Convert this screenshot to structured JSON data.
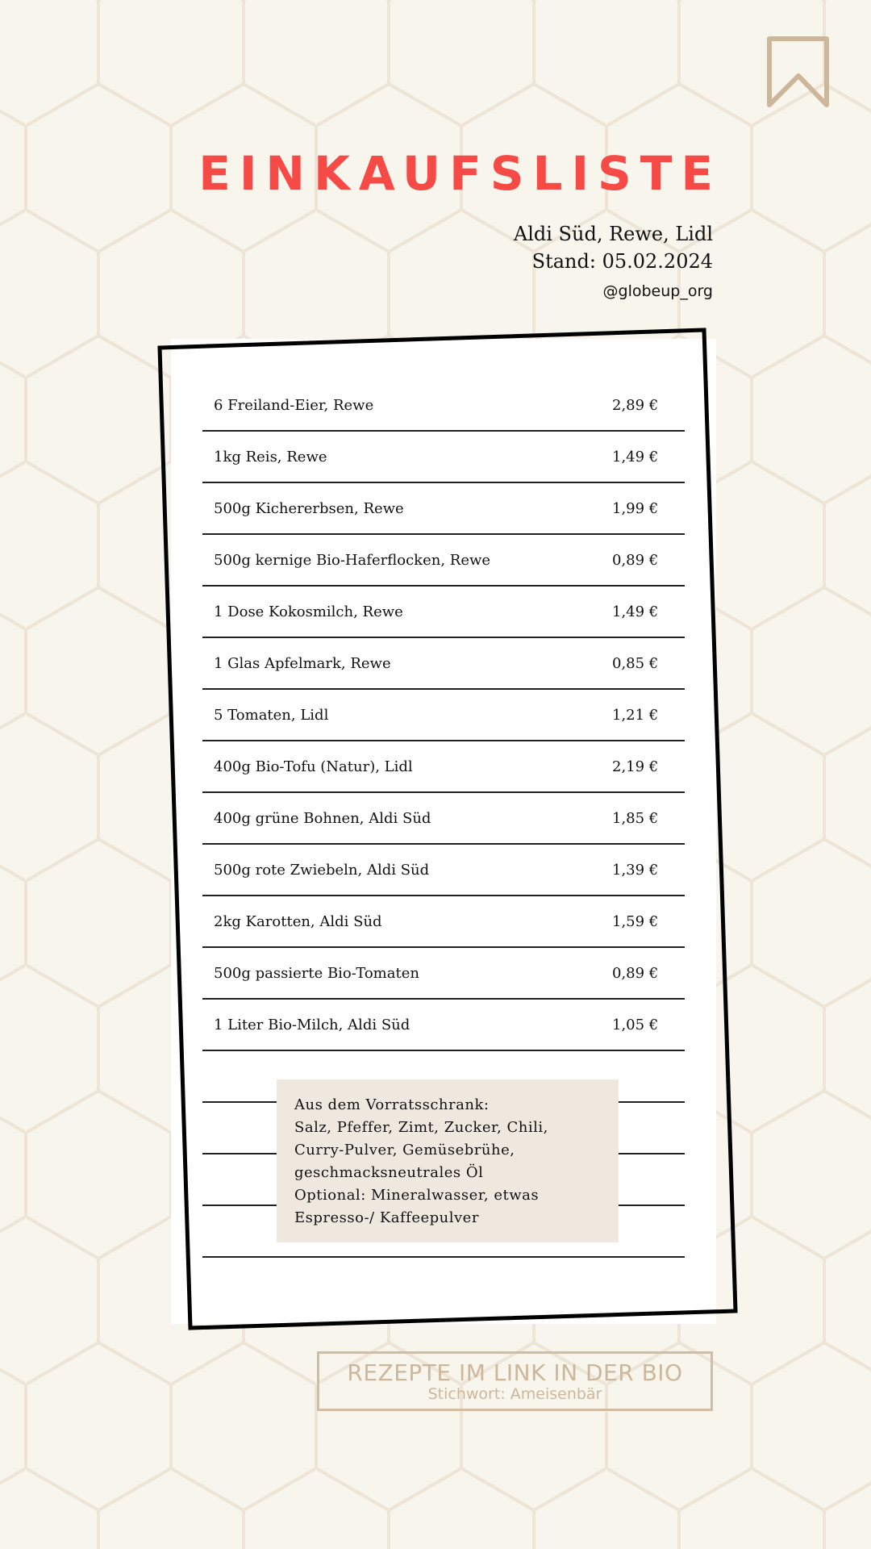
{
  "header": {
    "title": "EINKAUFSLISTE",
    "stores": "Aldi Süd, Rewe, Lidl",
    "date": "Stand: 05.02.2024",
    "handle": "@globeup_org",
    "bookmark_icon": "bookmark-icon"
  },
  "list": {
    "items": [
      {
        "name": "6 Freiland-Eier, Rewe",
        "price": "2,89 €"
      },
      {
        "name": "1kg Reis, Rewe",
        "price": "1,49 €"
      },
      {
        "name": "500g Kichererbsen, Rewe",
        "price": "1,99 €"
      },
      {
        "name": "500g kernige Bio-Haferflocken, Rewe",
        "price": "0,89 €"
      },
      {
        "name": "1 Dose Kokosmilch, Rewe",
        "price": "1,49 €"
      },
      {
        "name": "1 Glas Apfelmark, Rewe",
        "price": "0,85 €"
      },
      {
        "name": "5 Tomaten, Lidl",
        "price": "1,21 €"
      },
      {
        "name": "400g Bio-Tofu (Natur), Lidl",
        "price": "2,19 €"
      },
      {
        "name": "400g grüne Bohnen, Aldi Süd",
        "price": "1,85 €"
      },
      {
        "name": "500g rote Zwiebeln, Aldi Süd",
        "price": "1,39 €"
      },
      {
        "name": "2kg Karotten, Aldi Süd",
        "price": "1,59 €"
      },
      {
        "name": "500g passierte Bio-Tomaten",
        "price": "0,89 €"
      },
      {
        "name": "1 Liter Bio-Milch, Aldi Süd",
        "price": "1,05 €"
      }
    ]
  },
  "note": {
    "lines": [
      "Aus dem Vorratsschrank:",
      "Salz, Pfeffer, Zimt, Zucker, Chili,",
      "Curry-Pulver, Gemüsebrühe,",
      "geschmacksneutrales Öl",
      "Optional: Mineralwasser, etwas",
      "Espresso-/ Kaffeepulver"
    ]
  },
  "cta": {
    "headline": "REZEPTE IM LINK IN DER BIO",
    "keyword": "Stichwort: Ameisenbär"
  },
  "colors": {
    "background": "#f8f5ed",
    "accent": "#f64a47",
    "tan": "#cdb79b",
    "note": "#efe8df"
  }
}
